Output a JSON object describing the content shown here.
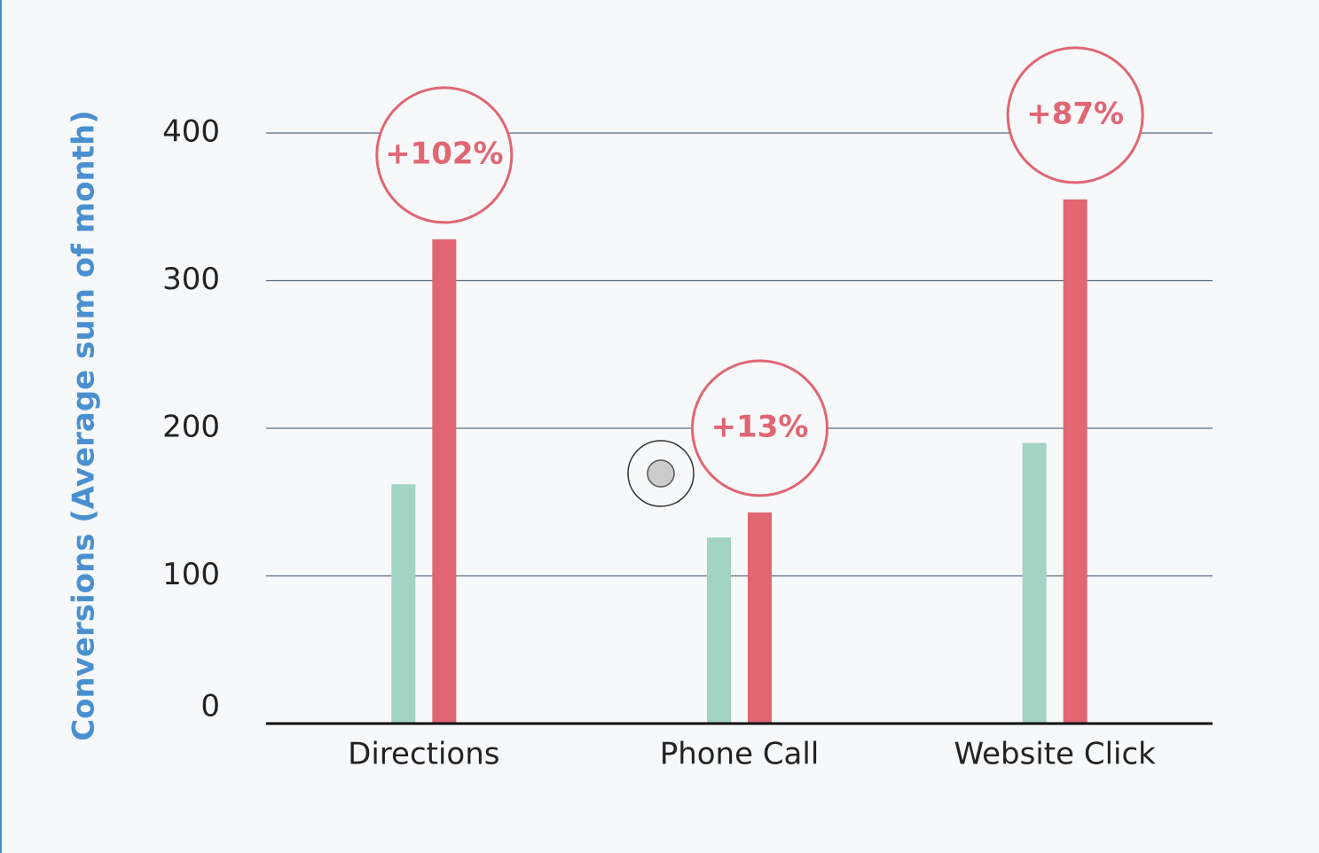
{
  "chart_data": {
    "type": "bar",
    "y_label": "Conversions (Average sum of month)",
    "categories": [
      "Directions",
      "Phone Call",
      "Website Click"
    ],
    "series": [
      {
        "color": "#a3d3c3",
        "values": [
          162,
          126,
          190
        ]
      },
      {
        "color": "#e06673",
        "values": [
          328,
          143,
          355
        ]
      }
    ],
    "annotations": [
      "+102%",
      "+13%",
      "+87%"
    ],
    "annotation_color": "#e06673",
    "ylim": [
      0,
      400
    ],
    "yticks": [
      0,
      100,
      200,
      300,
      400
    ],
    "grid": true
  }
}
